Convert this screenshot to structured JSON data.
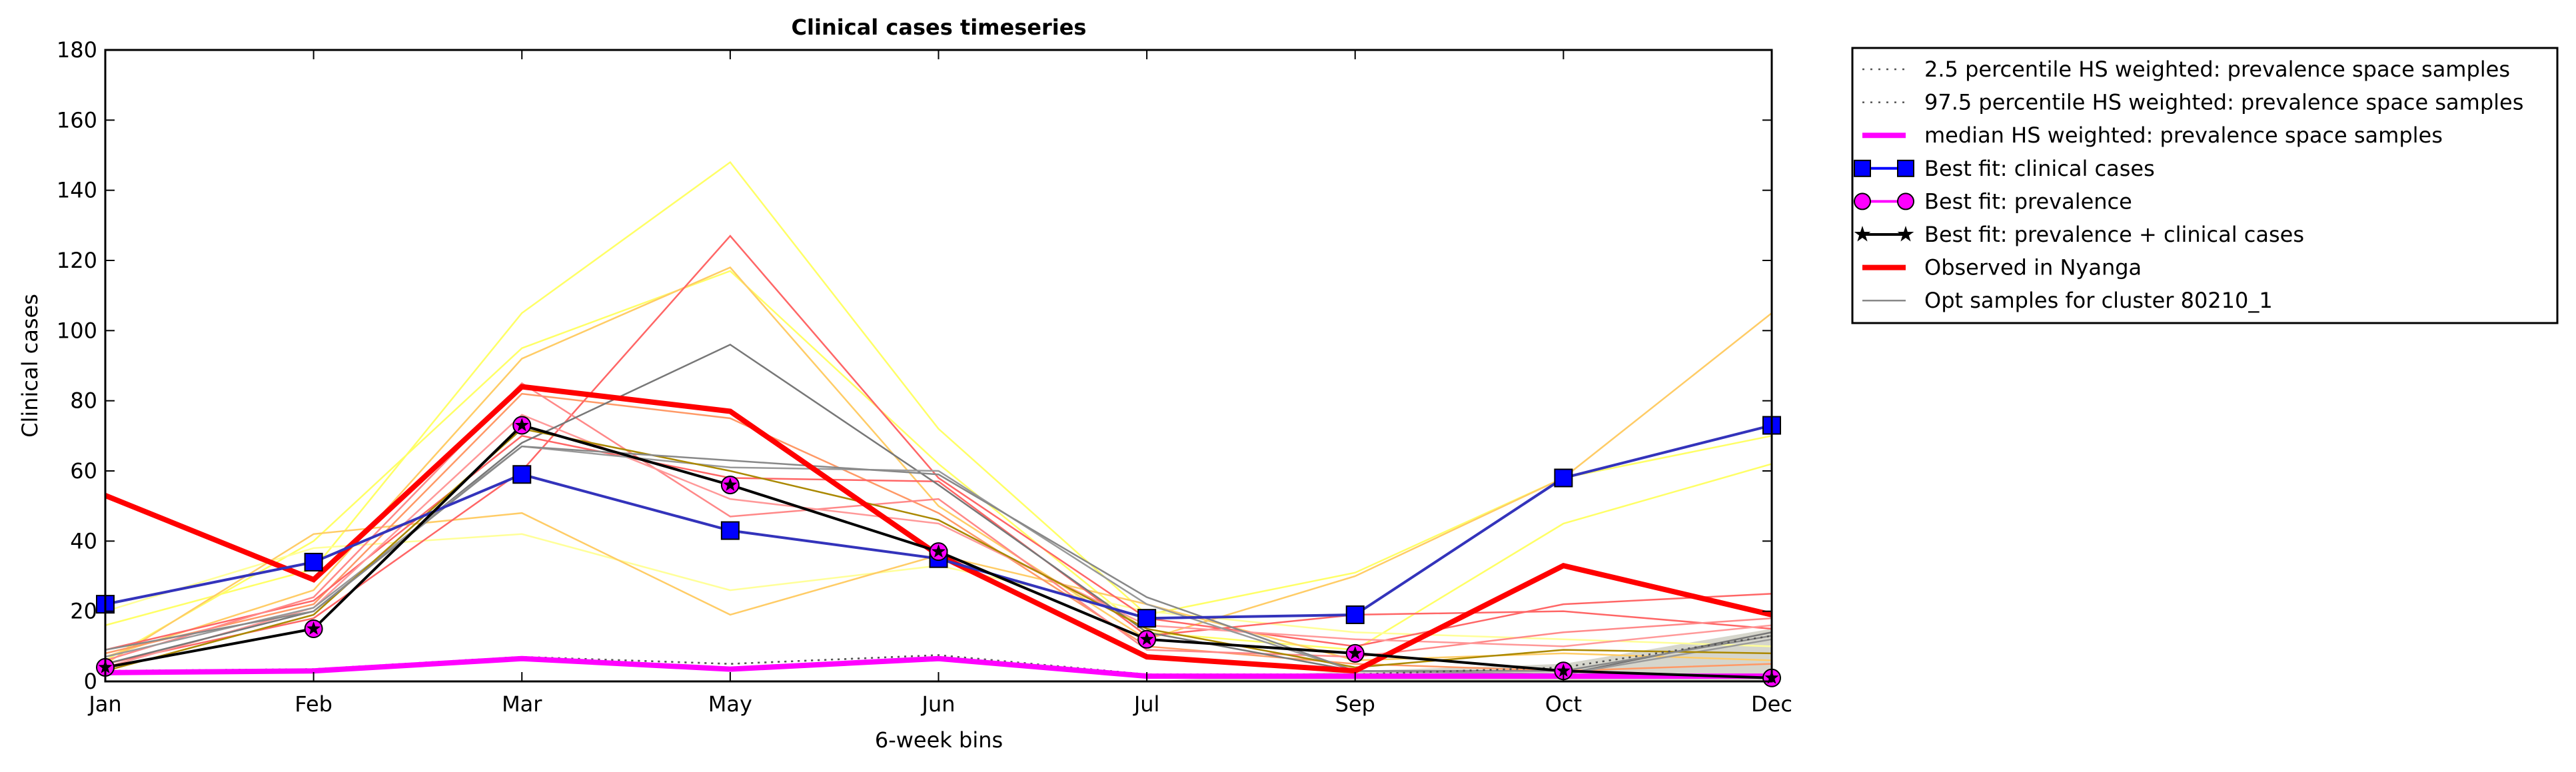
{
  "chart_data": {
    "type": "line",
    "title": "Clinical cases timeseries",
    "xlabel": "6-week bins",
    "ylabel": "Clinical cases",
    "categories": [
      "Jan",
      "Feb",
      "Mar",
      "May",
      "Jun",
      "Jul",
      "Sep",
      "Oct",
      "Dec"
    ],
    "ylim": [
      0,
      180
    ],
    "yticks": [
      0,
      20,
      40,
      60,
      80,
      100,
      120,
      140,
      160,
      180
    ],
    "legend_position": "outside right, top",
    "grid": false,
    "series": [
      {
        "name": "2.5 percentile HS weighted: prevalence space samples",
        "style": "dotted",
        "color": "#555555",
        "values": [
          3,
          3.5,
          7,
          5,
          7.5,
          2,
          2,
          4,
          13
        ]
      },
      {
        "name": "97.5 percentile HS weighted: prevalence space samples",
        "style": "dotted",
        "color": "#555555",
        "values": [
          3,
          3.5,
          7,
          5,
          7.5,
          2,
          2,
          4,
          13
        ]
      },
      {
        "name": "median HS weighted: prevalence space samples",
        "style": "solid-thick",
        "color": "#ff00ff",
        "values": [
          2.5,
          3,
          6.5,
          3.5,
          6.5,
          1.5,
          1.5,
          1.5,
          1.5
        ]
      },
      {
        "name": "Best fit: clinical cases",
        "style": "line-square",
        "color": "#0000ff",
        "line_color": "#3333bb",
        "values": [
          22,
          34,
          59,
          43,
          35,
          18,
          19,
          58,
          73
        ]
      },
      {
        "name": "Best fit: prevalence",
        "style": "marker-circle",
        "color": "#ff00ff",
        "values": [
          4,
          15,
          73,
          56,
          37,
          12,
          8,
          3,
          1
        ]
      },
      {
        "name": "Best fit: prevalence + clinical cases",
        "style": "line-star",
        "color": "#000000",
        "values": [
          4,
          15,
          73,
          56,
          37,
          12,
          8,
          3,
          1
        ]
      },
      {
        "name": "Observed in Nyanga",
        "style": "solid-thick",
        "color": "#ff0000",
        "values": [
          53,
          29,
          84,
          77,
          36,
          7,
          3,
          33,
          19
        ]
      },
      {
        "name": "Opt samples for cluster 80210_1",
        "style": "thin",
        "color": "#888888",
        "values": [
          9,
          20,
          67,
          63,
          59,
          24,
          3,
          3,
          13
        ]
      }
    ],
    "opt_samples": [
      {
        "color": "#ffff66",
        "values": [
          16,
          32,
          105,
          148,
          72,
          19,
          31,
          58,
          70
        ]
      },
      {
        "color": "#ffff66",
        "values": [
          6,
          40,
          95,
          117,
          62,
          14,
          9,
          45,
          62
        ]
      },
      {
        "color": "#ffff99",
        "values": [
          20,
          38,
          42,
          26,
          33,
          20,
          14,
          12,
          10
        ]
      },
      {
        "color": "#ffcc66",
        "values": [
          7,
          26,
          92,
          118,
          50,
          12,
          30,
          58,
          105
        ]
      },
      {
        "color": "#ffcc66",
        "values": [
          5,
          42,
          48,
          19,
          36,
          22,
          6,
          8,
          6
        ]
      },
      {
        "color": "#ff9966",
        "values": [
          8,
          22,
          82,
          75,
          48,
          10,
          5,
          3,
          5
        ]
      },
      {
        "color": "#ff6666",
        "values": [
          5,
          18,
          60,
          127,
          58,
          18,
          10,
          22,
          25
        ]
      },
      {
        "color": "#ff6666",
        "values": [
          9,
          23,
          70,
          58,
          57,
          13,
          19,
          20,
          15
        ]
      },
      {
        "color": "#ff8888",
        "values": [
          6,
          24,
          85,
          47,
          52,
          9,
          7,
          14,
          18
        ]
      },
      {
        "color": "#ff9999",
        "values": [
          4,
          21,
          76,
          52,
          45,
          16,
          12,
          10,
          16
        ]
      },
      {
        "color": "#777777",
        "values": [
          5,
          20,
          68,
          96,
          56,
          14,
          3,
          2,
          14
        ]
      },
      {
        "color": "#999999",
        "values": [
          7,
          21,
          67,
          61,
          60,
          22,
          3,
          2,
          12
        ]
      },
      {
        "color": "#aa8800",
        "values": [
          3,
          19,
          72,
          60,
          46,
          15,
          4,
          9,
          8
        ]
      }
    ],
    "shaded_band": {
      "color": "#bbbbaa",
      "lower": [
        0,
        0,
        0,
        0,
        0,
        0,
        0,
        0,
        0
      ],
      "upper": [
        0,
        0,
        0,
        0,
        0,
        0,
        3,
        5,
        15
      ]
    }
  }
}
